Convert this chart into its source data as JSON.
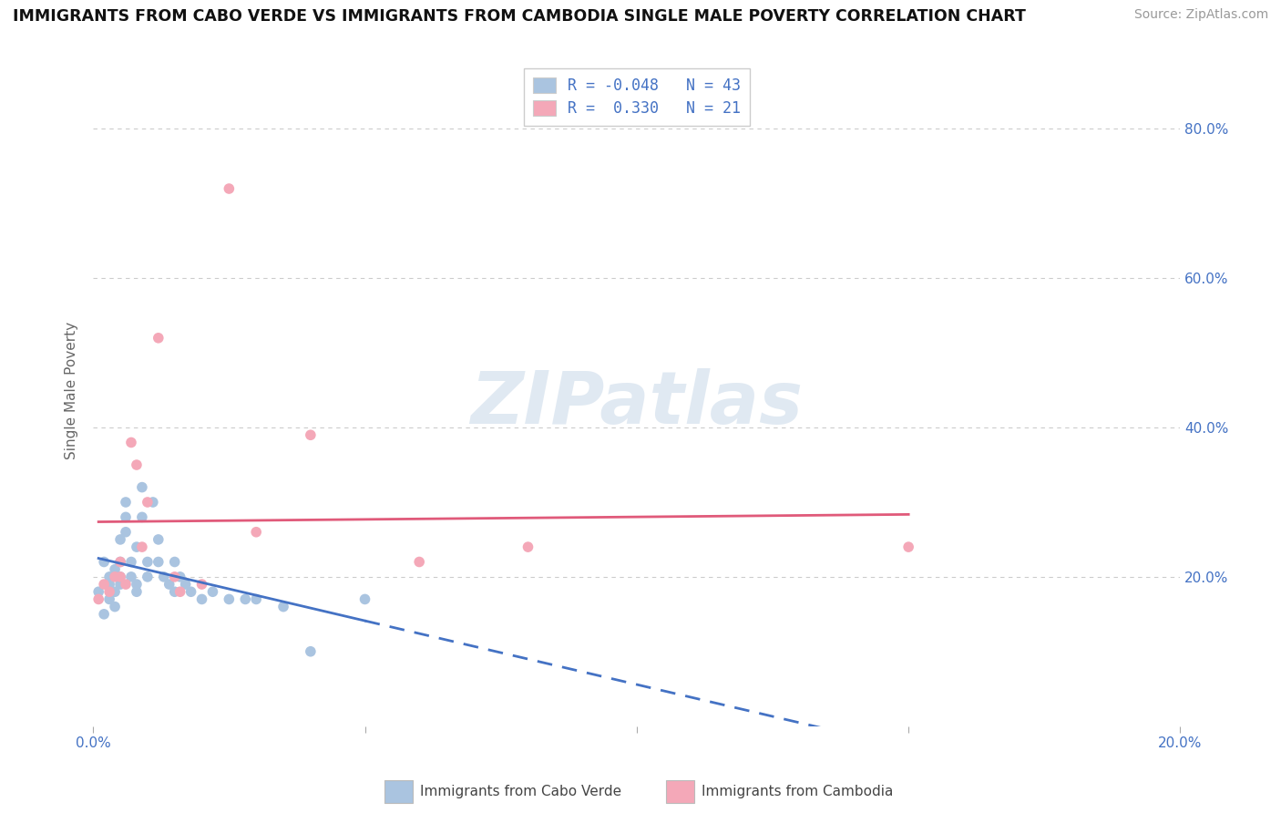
{
  "title": "IMMIGRANTS FROM CABO VERDE VS IMMIGRANTS FROM CAMBODIA SINGLE MALE POVERTY CORRELATION CHART",
  "source": "Source: ZipAtlas.com",
  "xlabel_cabo_verde": "Immigrants from Cabo Verde",
  "xlabel_cambodia": "Immigrants from Cambodia",
  "ylabel": "Single Male Poverty",
  "watermark": "ZIPatlas",
  "cabo_verde_x": [
    0.001,
    0.002,
    0.002,
    0.003,
    0.003,
    0.003,
    0.004,
    0.004,
    0.004,
    0.005,
    0.005,
    0.005,
    0.005,
    0.006,
    0.006,
    0.006,
    0.007,
    0.007,
    0.008,
    0.008,
    0.008,
    0.009,
    0.009,
    0.01,
    0.01,
    0.011,
    0.012,
    0.012,
    0.013,
    0.014,
    0.015,
    0.015,
    0.016,
    0.017,
    0.018,
    0.02,
    0.022,
    0.025,
    0.028,
    0.03,
    0.035,
    0.04,
    0.05
  ],
  "cabo_verde_y": [
    0.18,
    0.22,
    0.15,
    0.2,
    0.19,
    0.17,
    0.21,
    0.18,
    0.16,
    0.25,
    0.2,
    0.19,
    0.22,
    0.28,
    0.3,
    0.26,
    0.22,
    0.2,
    0.24,
    0.18,
    0.19,
    0.32,
    0.28,
    0.22,
    0.2,
    0.3,
    0.25,
    0.22,
    0.2,
    0.19,
    0.18,
    0.22,
    0.2,
    0.19,
    0.18,
    0.17,
    0.18,
    0.17,
    0.17,
    0.17,
    0.16,
    0.1,
    0.17
  ],
  "cambodia_x": [
    0.001,
    0.002,
    0.003,
    0.004,
    0.005,
    0.005,
    0.006,
    0.007,
    0.008,
    0.009,
    0.01,
    0.012,
    0.015,
    0.016,
    0.02,
    0.025,
    0.03,
    0.04,
    0.06,
    0.08,
    0.15
  ],
  "cambodia_y": [
    0.17,
    0.19,
    0.18,
    0.2,
    0.22,
    0.2,
    0.19,
    0.38,
    0.35,
    0.24,
    0.3,
    0.52,
    0.2,
    0.18,
    0.19,
    0.72,
    0.26,
    0.39,
    0.22,
    0.24,
    0.24
  ],
  "cabo_verde_color": "#aac4e0",
  "cambodia_color": "#f4a8b8",
  "cabo_verde_line_color": "#4472c4",
  "cambodia_line_color": "#e05a7a",
  "R_cabo_verde": -0.048,
  "N_cabo_verde": 43,
  "R_cambodia": 0.33,
  "N_cambodia": 21,
  "xlim": [
    0.0,
    0.2
  ],
  "ylim": [
    0.0,
    0.9
  ],
  "yticks": [
    0.0,
    0.2,
    0.4,
    0.6,
    0.8
  ],
  "ytick_labels": [
    "",
    "20.0%",
    "40.0%",
    "60.0%",
    "80.0%"
  ],
  "xticks": [
    0.0,
    0.05,
    0.1,
    0.15,
    0.2
  ],
  "xtick_labels": [
    "0.0%",
    "",
    "",
    "",
    "20.0%"
  ],
  "background_color": "#ffffff",
  "grid_color": "#cccccc"
}
